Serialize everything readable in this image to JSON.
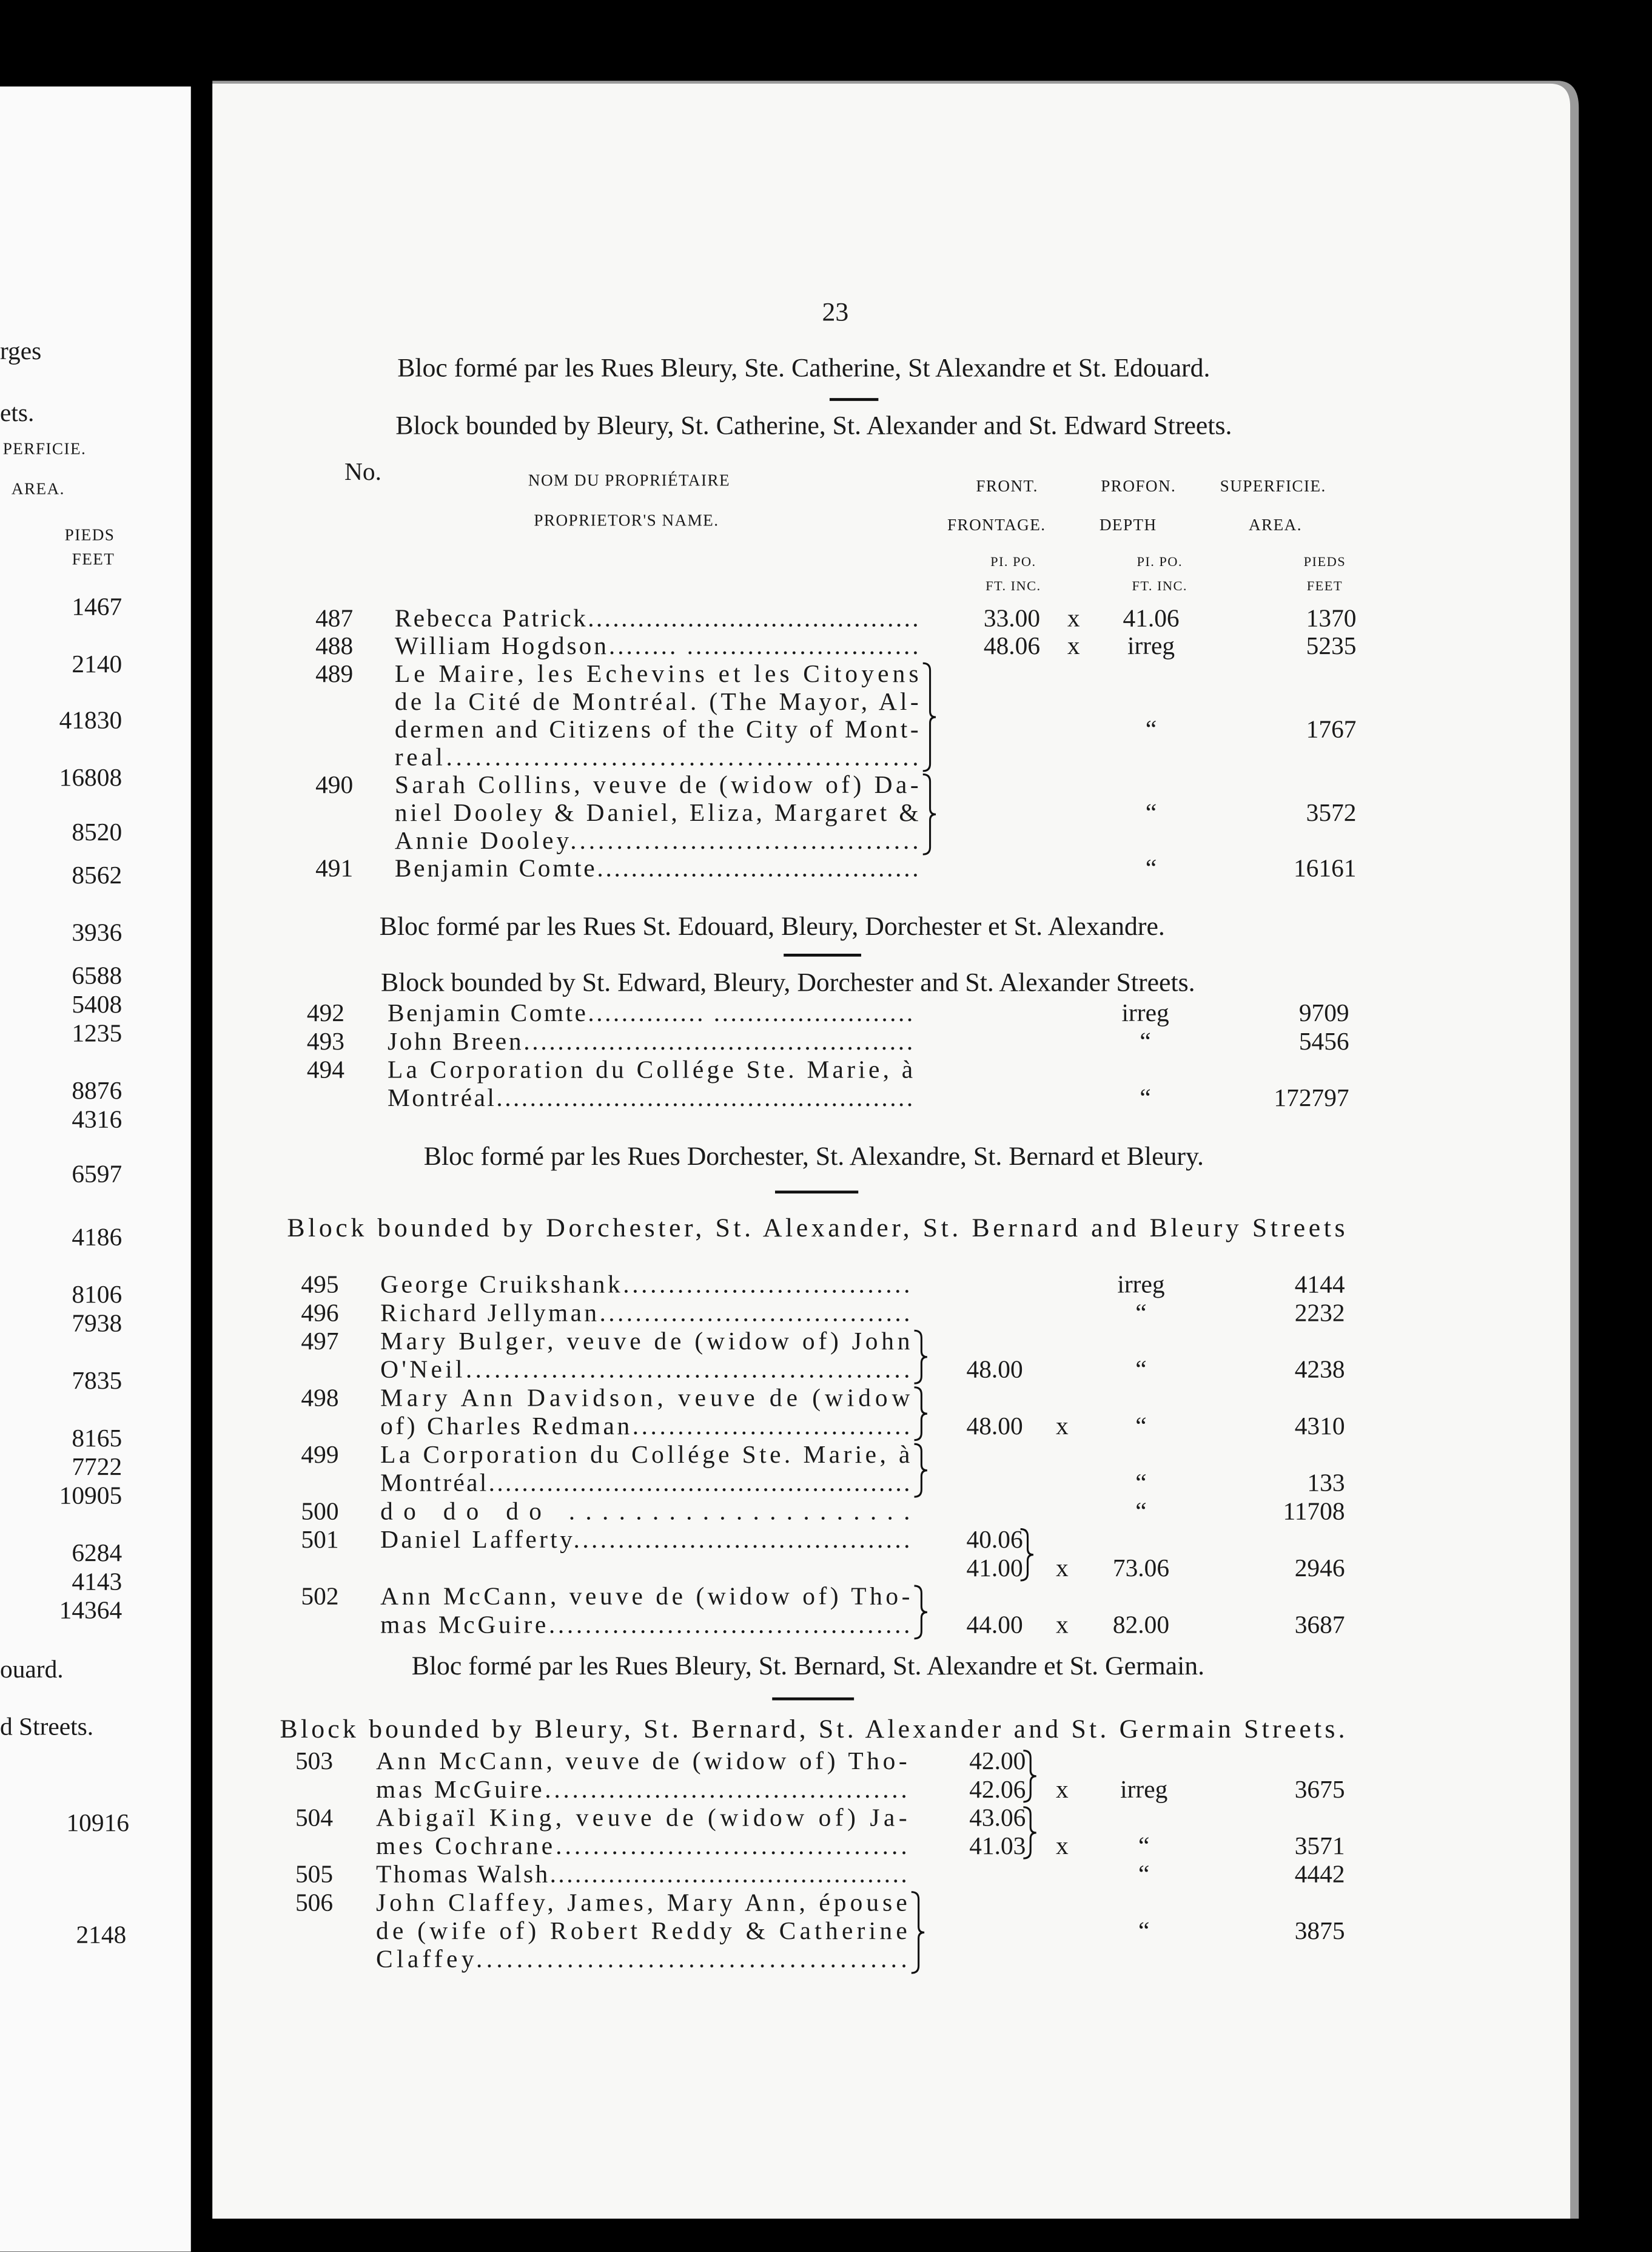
{
  "left_page": {
    "texts": [
      "rges",
      "ets.",
      "PERFICIE.",
      "AREA.",
      "PIEDS",
      "FEET",
      "1467",
      "2140",
      "41830",
      "16808",
      "8520",
      "8562",
      "3936",
      "6588",
      "5408",
      "1235",
      "8876",
      "4316",
      "6597",
      "4186",
      "8106",
      "7938",
      "7835",
      "8165",
      "7722",
      "10905",
      "6284",
      "4143",
      "14364",
      "ouard.",
      "d Streets.",
      "10916",
      "2148"
    ]
  },
  "page": {
    "page_number": "23",
    "column_headers": {
      "no": "No.",
      "name_fr": "NOM DU PROPRIÉTAIRE",
      "name_en": "PROPRIETOR'S NAME.",
      "front_fr": "FRONT.",
      "front_en": "FRONTAGE.",
      "depth_fr": "PROFON.",
      "depth_en": "DEPTH",
      "area_fr": "SUPERFICIE.",
      "area_en": "AREA.",
      "front_unit_fr": "PI. PO.",
      "front_unit_en": "FT. INC.",
      "depth_unit_fr": "PI. PO.",
      "depth_unit_en": "FT. INC.",
      "area_unit_fr": "PIEDS",
      "area_unit_en": "FEET"
    },
    "sections": [
      {
        "heading_fr": "Bloc formé par les Rues Bleury, Ste. Catherine, St Alexandre et St. Edouard.",
        "heading_en": "Block bounded by Bleury, St. Catherine, St. Alexander and St. Edward Streets.",
        "rows": [
          {
            "no": "487",
            "name": [
              "Rebecca Patrick........................................"
            ],
            "front": [
              "33.00"
            ],
            "x": "x",
            "depth": "41.06",
            "area": "1370"
          },
          {
            "no": "488",
            "name": [
              "William Hogdson........ ..........................."
            ],
            "front": [
              "48.06"
            ],
            "x": "x",
            "depth": "irreg",
            "area": "5235"
          },
          {
            "no": "489",
            "name": [
              "Le Maire, les Echevins et les Citoyens",
              "de la Cité de Montréal. (The Mayor, Al-",
              "dermen and Citizens of the City of Mont-",
              "real................................................."
            ],
            "depth": "“",
            "area": "1767",
            "brace": true
          },
          {
            "no": "490",
            "name": [
              "Sarah Collins, veuve de (widow of) Da-",
              "niel Dooley & Daniel, Eliza, Margaret &",
              "Annie Dooley......................................"
            ],
            "depth": "“",
            "area": "3572",
            "brace": true
          },
          {
            "no": "491",
            "name": [
              "Benjamin Comte......................................"
            ],
            "depth": "“",
            "area": "16161"
          }
        ]
      },
      {
        "heading_fr": "Bloc formé par les Rues St. Edouard, Bleury, Dorchester et St. Alexandre.",
        "heading_en": "Block bounded by St. Edward, Bleury, Dorchester and St. Alexander Streets.",
        "rows": [
          {
            "no": "492",
            "name": [
              "Benjamin Comte.............. ........................"
            ],
            "depth": "irreg",
            "area": "9709"
          },
          {
            "no": "493",
            "name": [
              "John Breen.............................................."
            ],
            "depth": "“",
            "area": "5456"
          },
          {
            "no": "494",
            "name": [
              "La Corporation du Collége Ste. Marie, à",
              "Montréal.................................................."
            ],
            "depth": "“",
            "area": "172797"
          }
        ]
      },
      {
        "heading_fr": "Bloc formé par les Rues Dorchester, St. Alexandre, St. Bernard et Bleury.",
        "heading_en": "Block bounded by Dorchester, St. Alexander, St. Bernard and Bleury Streets",
        "rows": [
          {
            "no": "495",
            "name": [
              "George Cruikshank................................"
            ],
            "depth": "irreg",
            "area": "4144"
          },
          {
            "no": "496",
            "name": [
              "Richard Jellyman..................................."
            ],
            "depth": "“",
            "area": "2232"
          },
          {
            "no": "497",
            "name": [
              "Mary Bulger, veuve de (widow of) John",
              "O'Neil..............................................."
            ],
            "front": [
              "48.00"
            ],
            "depth": "“",
            "area": "4238",
            "brace": true
          },
          {
            "no": "498",
            "name": [
              "Mary Ann Davidson, veuve de (widow",
              "of) Charles Redman..............................."
            ],
            "front": [
              "48.00"
            ],
            "x": "x",
            "depth": "“",
            "area": "4310",
            "brace": true
          },
          {
            "no": "499",
            "name": [
              "La Corporation du Collége Ste. Marie, à",
              "Montréal..................................................."
            ],
            "depth": "“",
            "area": "133",
            "brace": true
          },
          {
            "no": "500",
            "name": [
              "do          do          do          ....................."
            ],
            "depth": "“",
            "area": "11708"
          },
          {
            "no": "501",
            "name": [
              "Daniel Lafferty......................................"
            ],
            "front": [
              "40.06",
              "41.00"
            ],
            "x": "x",
            "depth": "73.06",
            "area": "2946"
          },
          {
            "no": "502",
            "name": [
              "Ann McCann, veuve de (widow of) Tho-",
              "mas McGuire........................................"
            ],
            "front": [
              "44.00"
            ],
            "x": "x",
            "depth": "82.00",
            "area": "3687",
            "brace": true
          }
        ]
      },
      {
        "heading_fr": "Bloc formé par les Rues Bleury, St. Bernard, St. Alexandre et St. Germain.",
        "heading_en": "Block bounded by Bleury, St. Bernard, St. Alexander and St. Germain Streets.",
        "rows": [
          {
            "no": "503",
            "name": [
              "Ann McCann, veuve de (widow of) Tho-",
              "mas McGuire........................................"
            ],
            "front": [
              "42.00",
              "42.06"
            ],
            "x": "x",
            "depth": "irreg",
            "area": "3675"
          },
          {
            "no": "504",
            "name": [
              "Abigaïl King, veuve de (widow of) Ja-",
              "mes Cochrane......................................"
            ],
            "front": [
              "43.06",
              "41.03"
            ],
            "x": "x",
            "depth": "“",
            "area": "3571"
          },
          {
            "no": "505",
            "name": [
              "Thomas Walsh..........................................."
            ],
            "depth": "“",
            "area": "4442"
          },
          {
            "no": "506",
            "name": [
              "John Claffey, James, Mary Ann, épouse",
              "de (wife of) Robert Reddy & Catherine",
              "Claffey..........................................."
            ],
            "depth": "“",
            "area": "3875",
            "brace": true
          }
        ]
      }
    ]
  }
}
